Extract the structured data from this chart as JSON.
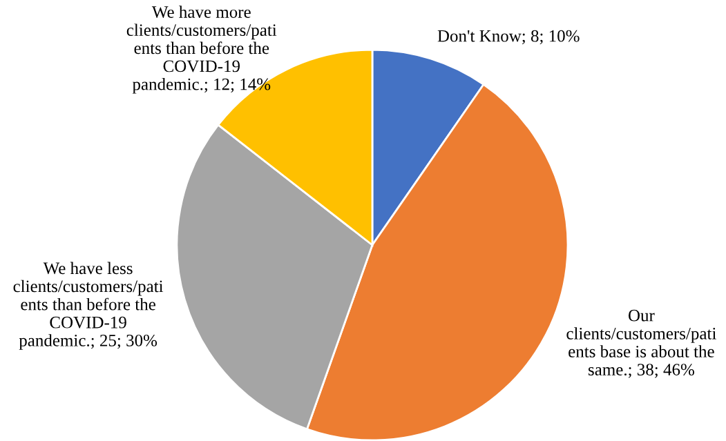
{
  "chart_data": {
    "type": "pie",
    "categories": [
      "Don't Know",
      "Our\nclients/customers/pati\nents base is about the\nsame.",
      "We have less\nclients/customers/pati\nents than before the\nCOVID-19\npandemic.",
      "We have more\nclients/customers/pati\nents than before the\nCOVID-19\npandemic."
    ],
    "values": [
      8,
      38,
      25,
      12
    ],
    "value_labels": [
      "8; 10%",
      "38; 46%",
      "25; 30%",
      "12; 14%"
    ],
    "colors": [
      "#4472c4",
      "#ed7d31",
      "#a5a5a5",
      "#ffc000"
    ]
  }
}
